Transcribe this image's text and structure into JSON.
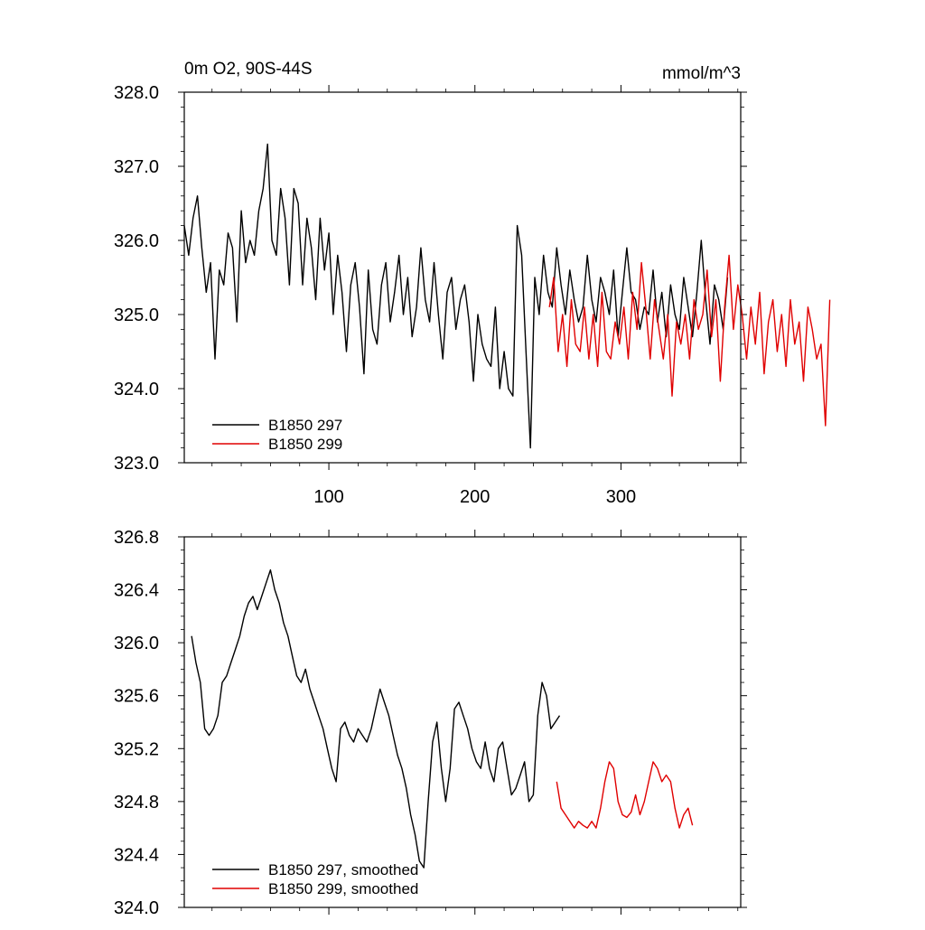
{
  "colors": {
    "series_a": "#000000",
    "series_b": "#e00000",
    "axis": "#000000"
  },
  "chart_data": [
    {
      "type": "line",
      "title_left": "0m O2, 90S-44S",
      "title_right": "mmol/m^3",
      "xlim": [
        1,
        382
      ],
      "ylim": [
        323.0,
        328.0
      ],
      "yticks": [
        323,
        324,
        325,
        326,
        327,
        328
      ],
      "ytick_labels": [
        "323.0",
        "324.0",
        "325.0",
        "326.0",
        "327.0",
        "328.0"
      ],
      "xticks": [
        100,
        200,
        300
      ],
      "xtick_labels": [
        "100",
        "200",
        "300"
      ],
      "legend_position": "bottom-left",
      "series": [
        {
          "name": "B1850 297",
          "color": "#000000",
          "x_start": 1,
          "x_step": 3,
          "values": [
            326.2,
            325.8,
            326.3,
            326.6,
            325.9,
            325.3,
            325.7,
            324.4,
            325.6,
            325.4,
            326.1,
            325.9,
            324.9,
            326.4,
            325.7,
            326.0,
            325.8,
            326.4,
            326.7,
            327.3,
            326.0,
            325.8,
            326.7,
            326.3,
            325.4,
            326.7,
            326.5,
            325.4,
            326.3,
            325.9,
            325.2,
            326.3,
            325.6,
            326.1,
            325.0,
            325.8,
            325.3,
            324.5,
            325.4,
            325.7,
            325.1,
            324.2,
            325.6,
            324.8,
            324.6,
            325.4,
            325.7,
            324.9,
            325.3,
            325.8,
            325.0,
            325.5,
            324.7,
            325.1,
            325.9,
            325.2,
            324.9,
            325.7,
            325.0,
            324.4,
            325.3,
            325.5,
            324.8,
            325.2,
            325.4,
            324.9,
            324.1,
            325.0,
            324.6,
            324.4,
            324.3,
            325.1,
            324.0,
            324.5,
            324.0,
            323.9,
            326.2,
            325.8,
            324.5,
            323.2,
            325.5,
            325.0,
            325.8,
            325.3,
            325.1,
            325.9,
            325.4,
            325.0,
            325.6,
            325.2,
            324.9,
            325.1,
            325.8,
            325.2,
            324.9,
            325.5,
            325.3,
            325.0,
            325.6,
            324.7,
            325.3,
            325.9,
            325.3,
            325.2,
            324.8,
            325.1,
            325.0,
            325.6,
            324.9,
            325.3,
            324.7,
            325.4,
            325.0,
            324.8,
            325.5,
            325.1,
            324.7,
            325.3,
            326.0,
            325.2,
            324.6,
            325.4,
            325.2,
            324.8,
            325.5
          ]
        },
        {
          "name": "B1850 299",
          "color": "#e00000",
          "x_start": 251,
          "x_step": 3,
          "values": [
            325.1,
            325.5,
            324.5,
            325.0,
            324.3,
            325.2,
            324.6,
            324.5,
            325.1,
            324.4,
            325.0,
            324.3,
            325.3,
            324.5,
            324.4,
            324.9,
            324.6,
            325.1,
            324.4,
            325.3,
            324.8,
            325.7,
            325.1,
            324.4,
            325.2,
            324.8,
            324.4,
            325.0,
            323.9,
            324.9,
            324.6,
            325.0,
            324.4,
            325.2,
            324.8,
            325.0,
            325.6,
            324.7,
            325.2,
            324.1,
            325.1,
            325.8,
            324.8,
            325.4,
            325.0,
            324.4,
            325.1,
            324.6,
            325.3,
            324.2,
            324.9,
            325.2,
            324.5,
            325.0,
            324.3,
            325.2,
            324.6,
            324.9,
            324.1,
            325.1,
            324.8,
            324.4,
            324.6,
            323.5,
            325.2
          ]
        }
      ]
    },
    {
      "type": "line",
      "xlim": [
        1,
        382
      ],
      "ylim": [
        324.0,
        326.8
      ],
      "yticks": [
        324.0,
        324.4,
        324.8,
        325.2,
        325.6,
        326.0,
        326.4,
        326.8
      ],
      "ytick_labels": [
        "324.0",
        "324.4",
        "324.8",
        "325.2",
        "325.6",
        "326.0",
        "326.4",
        "326.8"
      ],
      "xticks": [
        100,
        200,
        300
      ],
      "xtick_labels": [],
      "legend_position": "bottom-left",
      "series": [
        {
          "name": "B1850 297, smoothed",
          "color": "#000000",
          "x_start": 6,
          "x_step": 3,
          "values": [
            326.05,
            325.85,
            325.7,
            325.35,
            325.3,
            325.35,
            325.45,
            325.7,
            325.75,
            325.85,
            325.95,
            326.05,
            326.2,
            326.3,
            326.35,
            326.25,
            326.35,
            326.45,
            326.55,
            326.4,
            326.3,
            326.15,
            326.05,
            325.9,
            325.75,
            325.7,
            325.8,
            325.65,
            325.55,
            325.45,
            325.35,
            325.2,
            325.05,
            324.95,
            325.35,
            325.4,
            325.3,
            325.25,
            325.35,
            325.3,
            325.25,
            325.35,
            325.5,
            325.65,
            325.55,
            325.45,
            325.3,
            325.15,
            325.05,
            324.9,
            324.7,
            324.55,
            324.35,
            324.3,
            324.8,
            325.25,
            325.4,
            325.05,
            324.8,
            325.05,
            325.5,
            325.55,
            325.45,
            325.35,
            325.2,
            325.1,
            325.05,
            325.25,
            325.05,
            324.95,
            325.2,
            325.25,
            325.05,
            324.85,
            324.9,
            325.0,
            325.1,
            324.8,
            324.85,
            325.45,
            325.7,
            325.6,
            325.35,
            325.4,
            325.45
          ]
        },
        {
          "name": "B1850 299, smoothed",
          "color": "#e00000",
          "x_start": 256,
          "x_step": 3,
          "values": [
            324.95,
            324.75,
            324.7,
            324.65,
            324.6,
            324.65,
            324.62,
            324.6,
            324.65,
            324.6,
            324.75,
            324.95,
            325.1,
            325.05,
            324.8,
            324.7,
            324.68,
            324.72,
            324.85,
            324.7,
            324.8,
            324.95,
            325.1,
            325.05,
            324.95,
            325.0,
            324.95,
            324.75,
            324.6,
            324.7,
            324.75,
            324.62
          ]
        }
      ]
    }
  ]
}
